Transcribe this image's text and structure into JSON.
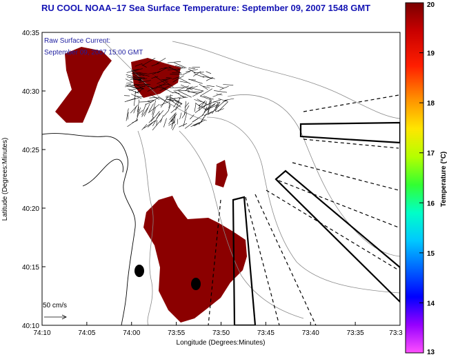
{
  "title": "RU COOL  NOAA–17  Sea Surface Temperature:  September 09, 2007 1548 GMT",
  "overlay": {
    "line1": "Raw Surface Current:",
    "line2": "September 09, 2007 15:00 GMT"
  },
  "scale_label": "50 cm/s",
  "axes": {
    "xlabel": "Longitude (Degrees:Minutes)",
    "ylabel": "Latitude (Degrees:Minutes)",
    "xticks": [
      "74:10",
      "74:05",
      "74:00",
      "73:55",
      "73:50",
      "73:45",
      "73:40",
      "73:35",
      "73:3"
    ],
    "yticks": [
      "40:35",
      "40:30",
      "40:25",
      "40:20",
      "40:15",
      "40:10"
    ]
  },
  "colorbar": {
    "label": "Temperature (°C)",
    "ticks": [
      "20",
      "19",
      "18",
      "17",
      "16",
      "15",
      "14",
      "13"
    ],
    "min": 13,
    "max": 20
  },
  "colors": {
    "sst_patch": "#8b0000",
    "title": "#1414b4",
    "overlay_text": "#1e1ea0"
  }
}
